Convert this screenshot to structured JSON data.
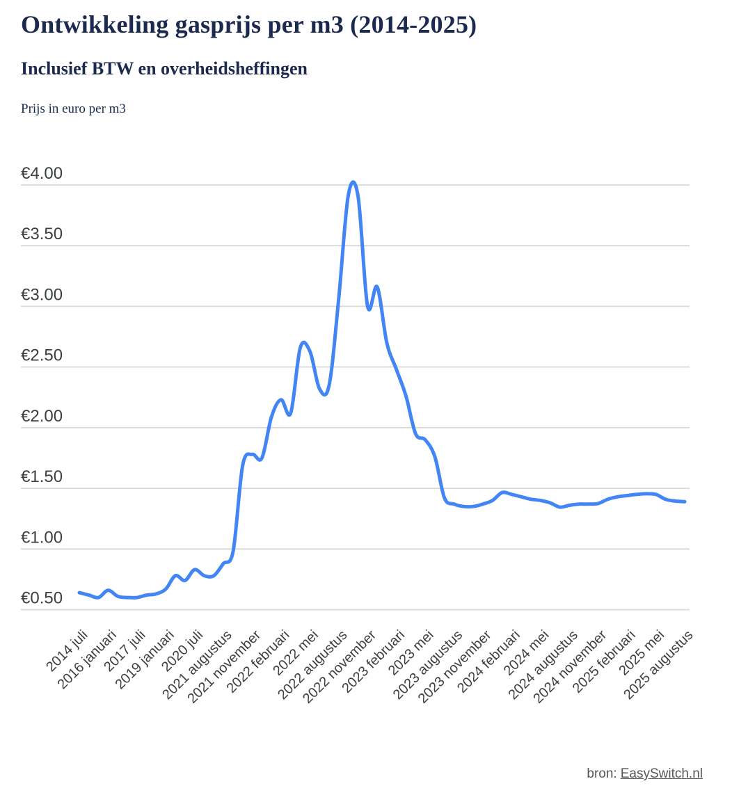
{
  "header": {
    "title": "Ontwikkeling gasprijs per m3 (2014-2025)",
    "subtitle": "Inclusief BTW en overheidsheffingen",
    "unit_label": "Prijs in euro per m3"
  },
  "footer": {
    "source_prefix": "bron:",
    "source_link_text": "EasySwitch.nl"
  },
  "colors": {
    "title_navy": "#1b2a4e",
    "line_blue": "#4285f4",
    "gridline_gray": "#d8d8d8",
    "axis_text_gray": "#3c4043",
    "source_text_gray": "#54565a"
  },
  "chart_data": {
    "type": "line",
    "title": "Ontwikkeling gasprijs per m3 (2014-2025)",
    "subtitle": "Inclusief BTW en overheidsheffingen",
    "ylabel": "Prijs in euro per m3",
    "xlabel": "",
    "ylim": [
      0.5,
      4.0
    ],
    "grid": true,
    "legend": "none",
    "line_color": "#4285f4",
    "grid_color": "#d8d8d8",
    "y_ticks": [
      {
        "label": "€4.00",
        "value": 4.0
      },
      {
        "label": "€3.50",
        "value": 3.5
      },
      {
        "label": "€3.00",
        "value": 3.0
      },
      {
        "label": "€2.50",
        "value": 2.5
      },
      {
        "label": "€2.00",
        "value": 2.0
      },
      {
        "label": "€1.50",
        "value": 1.5
      },
      {
        "label": "€1.00",
        "value": 1.0
      },
      {
        "label": "€0.50",
        "value": 0.5
      }
    ],
    "x_tick_labels": [
      "2014 juli",
      "2016 januari",
      "2017 juli",
      "2019 januari",
      "2020 juli",
      "2021 augustus",
      "2021 november",
      "2022 februari",
      "2022 mei",
      "2022 augustus",
      "2022 november",
      "2023 februari",
      "2023 mei",
      "2023 augustus",
      "2023 november",
      "2024 februari",
      "2024 mei",
      "2024 augustus",
      "2024 november",
      "2025 februari",
      "2025 mei",
      "2025 augustus"
    ],
    "x_tick_step": 3,
    "values": [
      0.64,
      0.62,
      0.6,
      0.66,
      0.61,
      0.6,
      0.6,
      0.62,
      0.63,
      0.67,
      0.78,
      0.74,
      0.83,
      0.78,
      0.78,
      0.88,
      0.98,
      1.69,
      1.78,
      1.75,
      2.09,
      2.23,
      2.12,
      2.66,
      2.63,
      2.32,
      2.35,
      3.07,
      3.92,
      3.91,
      3.0,
      3.16,
      2.7,
      2.48,
      2.26,
      1.95,
      1.9,
      1.76,
      1.42,
      1.37,
      1.35,
      1.35,
      1.37,
      1.4,
      1.465,
      1.45,
      1.43,
      1.41,
      1.4,
      1.38,
      1.345,
      1.36,
      1.37,
      1.37,
      1.375,
      1.41,
      1.43,
      1.44,
      1.45,
      1.455,
      1.45,
      1.41,
      1.395,
      1.39
    ]
  }
}
